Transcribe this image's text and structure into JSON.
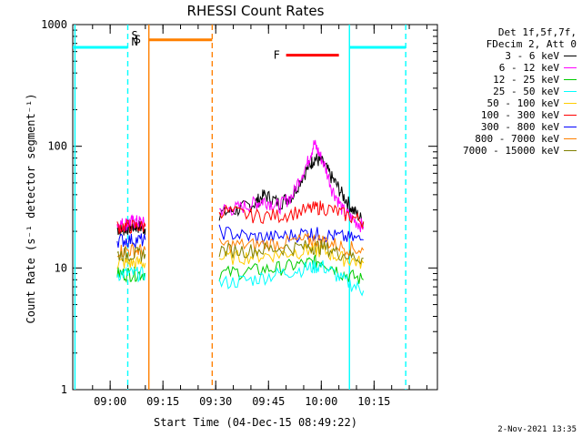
{
  "chart_data": {
    "type": "line",
    "title": "RHESSI Count Rates",
    "xlabel": "Start Time (04-Dec-15 08:49:22)",
    "ylabel": "Count Rate (s⁻¹ detector segment⁻¹)",
    "y_scale": "log",
    "ylim": [
      1,
      1000
    ],
    "xlim": [
      "08:49:22",
      "10:33:00"
    ],
    "x_tick_labels": [
      "09:00",
      "09:15",
      "09:30",
      "09:45",
      "10:00",
      "10:15"
    ],
    "y_tick_labels": [
      "1",
      "10",
      "100",
      "1000"
    ],
    "legend": {
      "header": [
        "Det 1f,5f,7f,",
        "FDecim 2, Att 0"
      ],
      "placement": "right-outside"
    },
    "series": [
      {
        "name": "3 - 6 keV",
        "color": "#000000",
        "segments": [
          {
            "t": [
              "09:02",
              "09:04",
              "09:06",
              "09:08",
              "09:10"
            ],
            "y": [
              21,
              21,
              22,
              22,
              21
            ]
          },
          {
            "t": [
              "09:31",
              "09:36",
              "09:41",
              "09:44",
              "09:48",
              "09:52",
              "09:56",
              "09:58",
              "10:00",
              "10:03",
              "10:06",
              "10:09",
              "10:12"
            ],
            "y": [
              28,
              30,
              34,
              40,
              34,
              40,
              65,
              80,
              75,
              55,
              40,
              30,
              24
            ]
          }
        ]
      },
      {
        "name": "6 - 12 keV",
        "color": "#ff00ff",
        "segments": [
          {
            "t": [
              "09:02",
              "09:04",
              "09:06",
              "09:08",
              "09:10"
            ],
            "y": [
              23,
              23,
              24,
              24,
              23
            ]
          },
          {
            "t": [
              "09:31",
              "09:36",
              "09:41",
              "09:44",
              "09:48",
              "09:52",
              "09:56",
              "09:58",
              "10:00",
              "10:03",
              "10:06",
              "10:09",
              "10:12"
            ],
            "y": [
              30,
              31,
              34,
              36,
              32,
              40,
              72,
              105,
              80,
              45,
              30,
              25,
              22
            ]
          }
        ]
      },
      {
        "name": "12 - 25 keV",
        "color": "#00cc00",
        "segments": [
          {
            "t": [
              "09:02",
              "09:06",
              "09:10"
            ],
            "y": [
              9,
              9,
              9
            ]
          },
          {
            "t": [
              "09:31",
              "09:40",
              "09:48",
              "09:56",
              "10:00",
              "10:06",
              "10:12"
            ],
            "y": [
              9,
              9.5,
              10,
              11,
              11.5,
              9,
              8
            ]
          }
        ]
      },
      {
        "name": "25 - 50 keV",
        "color": "#00ffff",
        "segments": [
          {
            "t": [
              "09:02",
              "09:06",
              "09:10"
            ],
            "y": [
              9,
              9,
              9
            ]
          },
          {
            "t": [
              "09:31",
              "09:40",
              "09:48",
              "09:56",
              "10:00",
              "10:06",
              "10:12"
            ],
            "y": [
              7.5,
              8,
              9,
              10,
              10.5,
              8,
              6.5
            ]
          }
        ]
      },
      {
        "name": "50 - 100 keV",
        "color": "#ffcc00",
        "segments": [
          {
            "t": [
              "09:02",
              "09:06",
              "09:10"
            ],
            "y": [
              11,
              11,
              11
            ]
          },
          {
            "t": [
              "09:31",
              "09:40",
              "09:48",
              "09:56",
              "10:00",
              "10:06",
              "10:12"
            ],
            "y": [
              12,
              12.5,
              13,
              14,
              14,
              12,
              11
            ]
          }
        ]
      },
      {
        "name": "100 - 300 keV",
        "color": "#ff0000",
        "segments": [
          {
            "t": [
              "09:02",
              "09:06",
              "09:10"
            ],
            "y": [
              22,
              22,
              22
            ]
          },
          {
            "t": [
              "09:31",
              "09:40",
              "09:48",
              "09:56",
              "10:00",
              "10:06",
              "10:12"
            ],
            "y": [
              30,
              27,
              27,
              30,
              32,
              28,
              24
            ]
          }
        ]
      },
      {
        "name": "300 - 800 keV",
        "color": "#0000ff",
        "segments": [
          {
            "t": [
              "09:02",
              "09:06",
              "09:10"
            ],
            "y": [
              17,
              17,
              17
            ]
          },
          {
            "t": [
              "09:31",
              "09:40",
              "09:48",
              "09:56",
              "10:00",
              "10:06",
              "10:12"
            ],
            "y": [
              20,
              18,
              18,
              19.5,
              19,
              18,
              17
            ]
          }
        ]
      },
      {
        "name": "800 - 7000 keV",
        "color": "#ff8000",
        "segments": [
          {
            "t": [
              "09:02",
              "09:06",
              "09:10"
            ],
            "y": [
              14,
              14,
              14
            ]
          },
          {
            "t": [
              "09:31",
              "09:40",
              "09:48",
              "09:56",
              "10:00",
              "10:06",
              "10:12"
            ],
            "y": [
              15.5,
              15.5,
              16,
              17,
              17,
              15,
              14
            ]
          }
        ]
      },
      {
        "name": "7000 - 15000 keV",
        "color": "#808000",
        "segments": [
          {
            "t": [
              "09:02",
              "09:06",
              "09:10"
            ],
            "y": [
              13,
              13,
              13
            ]
          },
          {
            "t": [
              "09:31",
              "09:40",
              "09:48",
              "09:56",
              "10:00",
              "10:06",
              "10:12"
            ],
            "y": [
              14,
              14,
              14.5,
              15,
              15,
              13,
              12
            ]
          }
        ]
      }
    ],
    "markers": [
      {
        "label": "",
        "color": "#00ffff",
        "from": "08:49:22",
        "to": "09:05",
        "y": 650
      },
      {
        "label": "S",
        "color": "#ff8000",
        "from": "09:11",
        "to": "09:29",
        "y": 750
      },
      {
        "label": "F",
        "color": "#ff0000",
        "from": "09:50",
        "to": "10:05",
        "y": 560
      },
      {
        "label": "",
        "color": "#00ffff",
        "from": "10:08",
        "to": "10:24",
        "y": 650
      }
    ],
    "marker_stack_labels": [
      {
        "text": "S",
        "color": "#ff8000"
      },
      {
        "text": "N",
        "color": "#00ffff"
      }
    ],
    "vertical_lines": [
      {
        "t": "08:50",
        "color": "#00ffff",
        "style": "solid"
      },
      {
        "t": "09:05",
        "color": "#00ffff",
        "style": "dashed"
      },
      {
        "t": "09:11",
        "color": "#ff8000",
        "style": "solid"
      },
      {
        "t": "09:29",
        "color": "#ff8000",
        "style": "dashed"
      },
      {
        "t": "10:08",
        "color": "#00ffff",
        "style": "solid"
      },
      {
        "t": "10:24",
        "color": "#00ffff",
        "style": "dashed"
      }
    ]
  },
  "footer": {
    "timestamp": "2-Nov-2021 13:35"
  }
}
